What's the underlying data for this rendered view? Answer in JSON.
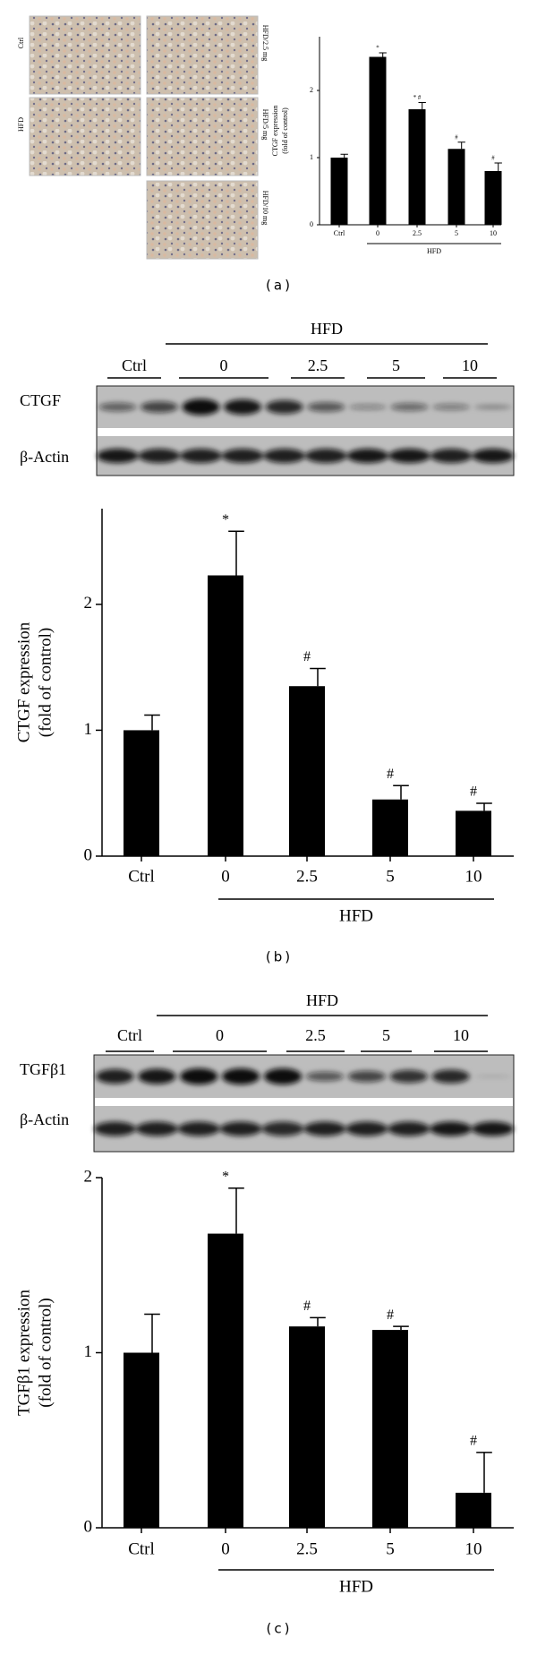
{
  "chart_data": [
    {
      "type": "bar",
      "caption": "(a)",
      "micrograph_labels": [
        "Ctrl",
        "HFD",
        "HFD/2.5 mg",
        "HFD/5 mg",
        "HFD/10 mg"
      ],
      "ylabel": [
        "CTGF expression",
        "(fold of control)"
      ],
      "categories": [
        "Ctrl",
        "0",
        "2.5",
        "5",
        "10"
      ],
      "group_label": "HFD",
      "values": [
        1.0,
        2.5,
        1.72,
        1.13,
        0.8
      ],
      "errors": [
        0.05,
        0.06,
        0.1,
        0.1,
        0.12
      ],
      "annotations": [
        null,
        "*",
        "* #",
        "#",
        "#"
      ],
      "color": "#000000",
      "ylim": [
        0,
        2.8
      ],
      "yticks": [
        0,
        1,
        2
      ]
    },
    {
      "type": "bar",
      "caption": "(b)",
      "blot": {
        "group_label": "HFD",
        "lane_labels": [
          "Ctrl",
          "0",
          "2.5",
          "5",
          "10"
        ],
        "band_labels": [
          "CTGF",
          "β-Actin"
        ]
      },
      "ylabel": [
        "CTGF expression",
        "(fold of control)"
      ],
      "categories": [
        "Ctrl",
        "0",
        "2.5",
        "5",
        "10"
      ],
      "group_label": "HFD",
      "values": [
        1.0,
        2.23,
        1.35,
        0.45,
        0.36
      ],
      "errors": [
        0.12,
        0.35,
        0.14,
        0.11,
        0.06
      ],
      "annotations": [
        null,
        "*",
        "#",
        "#",
        "#"
      ],
      "color": "#000000",
      "ylim": [
        0,
        2.76
      ],
      "yticks": [
        0,
        1,
        2
      ]
    },
    {
      "type": "bar",
      "caption": "(c)",
      "blot": {
        "group_label": "HFD",
        "lane_labels": [
          "Ctrl",
          "0",
          "2.5",
          "5",
          "10"
        ],
        "band_labels": [
          "TGFβ1",
          "β-Actin"
        ]
      },
      "ylabel": [
        "TGFβ1 expression",
        "(fold of control)"
      ],
      "categories": [
        "Ctrl",
        "0",
        "2.5",
        "5",
        "10"
      ],
      "group_label": "HFD",
      "values": [
        1.0,
        1.68,
        1.15,
        1.13,
        0.2
      ],
      "errors": [
        0.22,
        0.26,
        0.05,
        0.02,
        0.23
      ],
      "annotations": [
        null,
        "*",
        "#",
        "#",
        "#"
      ],
      "color": "#000000",
      "ylim": [
        0,
        2.0
      ],
      "yticks": [
        0,
        1,
        2
      ]
    }
  ]
}
